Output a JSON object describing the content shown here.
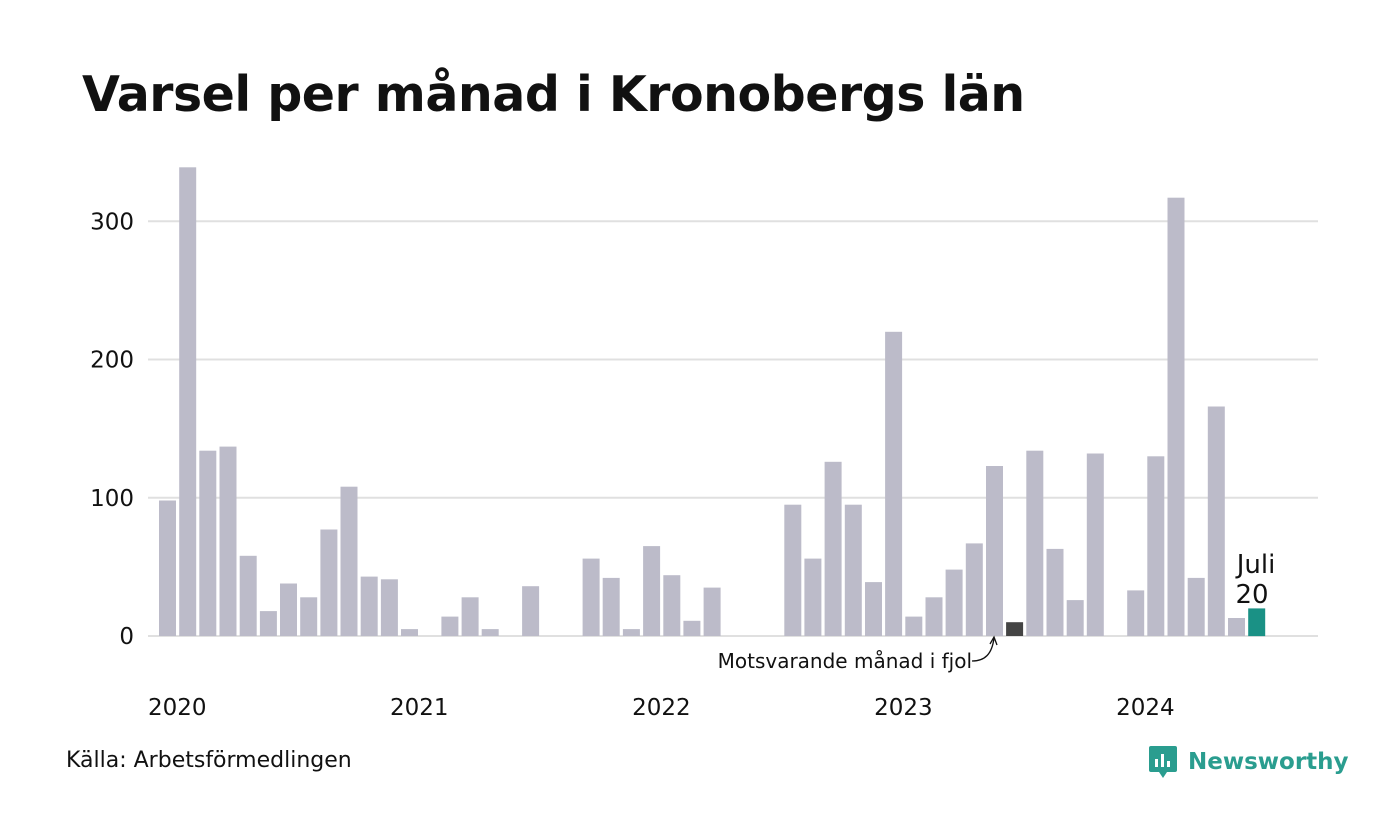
{
  "title": "Varsel per månad i Kronobergs län",
  "source": "Källa: Arbetsförmedlingen",
  "brand": {
    "name": "Newsworthy",
    "icon": "newsworthy-logo-icon",
    "color": "#2a9d8f"
  },
  "colors": {
    "bar": "#bcbbc9",
    "highlight_prev": "#444444",
    "current": "#1a9185",
    "grid": "#e0e0e0"
  },
  "chart_data": {
    "type": "bar",
    "title": "Varsel per månad i Kronobergs län",
    "xlabel": "",
    "ylabel": "",
    "ylim": [
      0,
      340
    ],
    "yticks": [
      0,
      100,
      200,
      300
    ],
    "xticks": [
      {
        "label": "2020",
        "index": 0
      },
      {
        "label": "2021",
        "index": 12
      },
      {
        "label": "2022",
        "index": 24
      },
      {
        "label": "2023",
        "index": 36
      },
      {
        "label": "2024",
        "index": 48
      }
    ],
    "grid": true,
    "series": [
      {
        "categories": [
          "2020-01",
          "2020-02",
          "2020-03",
          "2020-04",
          "2020-05",
          "2020-06",
          "2020-07",
          "2020-08",
          "2020-09",
          "2020-10",
          "2020-11",
          "2020-12",
          "2021-01",
          "2021-02",
          "2021-03",
          "2021-04",
          "2021-05",
          "2021-06",
          "2021-07",
          "2021-08",
          "2021-09",
          "2021-10",
          "2021-11",
          "2021-12",
          "2022-01",
          "2022-02",
          "2022-03",
          "2022-04",
          "2022-05",
          "2022-06",
          "2022-07",
          "2022-08",
          "2022-09",
          "2022-10",
          "2022-11",
          "2022-12",
          "2023-01",
          "2023-02",
          "2023-03",
          "2023-04",
          "2023-05",
          "2023-06",
          "2023-07",
          "2023-08",
          "2023-09",
          "2023-10",
          "2023-11",
          "2023-12",
          "2024-01",
          "2024-02",
          "2024-03",
          "2024-04",
          "2024-05",
          "2024-06",
          "2024-07"
        ],
        "values": [
          98,
          339,
          134,
          137,
          58,
          18,
          38,
          28,
          77,
          108,
          43,
          41,
          5,
          0,
          14,
          28,
          5,
          0,
          36,
          0,
          0,
          56,
          42,
          5,
          65,
          44,
          11,
          35,
          0,
          0,
          0,
          95,
          56,
          126,
          95,
          39,
          220,
          14,
          28,
          48,
          67,
          123,
          10,
          134,
          63,
          26,
          132,
          0,
          33,
          130,
          317,
          42,
          166,
          13,
          20
        ]
      }
    ],
    "highlight_previous_index": 42,
    "current_index": 54,
    "annotations": {
      "previous_label": "Motsvarande månad i fjol",
      "current_month": "Juli",
      "current_value": "20"
    }
  }
}
